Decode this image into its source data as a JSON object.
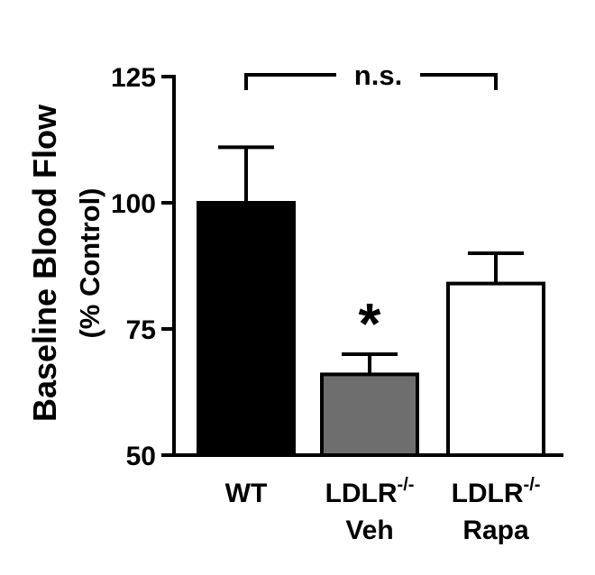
{
  "chart_data": {
    "type": "bar",
    "ylabel_line1": "Baseline Blood Flow",
    "ylabel_line2": "(% Control)",
    "ylim": [
      50,
      125
    ],
    "yticks": [
      "50",
      "75",
      "100",
      "125"
    ],
    "ytick_values": [
      50,
      75,
      100,
      125
    ],
    "categories": [
      {
        "line1": "WT",
        "sup": "",
        "line2": ""
      },
      {
        "line1": "LDLR",
        "sup": "-/-",
        "line2": "Veh"
      },
      {
        "line1": "LDLR",
        "sup": "-/-",
        "line2": "Rapa"
      }
    ],
    "values": [
      100,
      66,
      84
    ],
    "errors_upper": [
      111,
      70,
      90
    ],
    "bar_colors": [
      "#000000",
      "#6e6e6e",
      "#ffffff"
    ],
    "significance": {
      "label": "n.s.",
      "between": [
        0,
        2
      ]
    },
    "star": {
      "label": "*",
      "index": 1
    }
  }
}
